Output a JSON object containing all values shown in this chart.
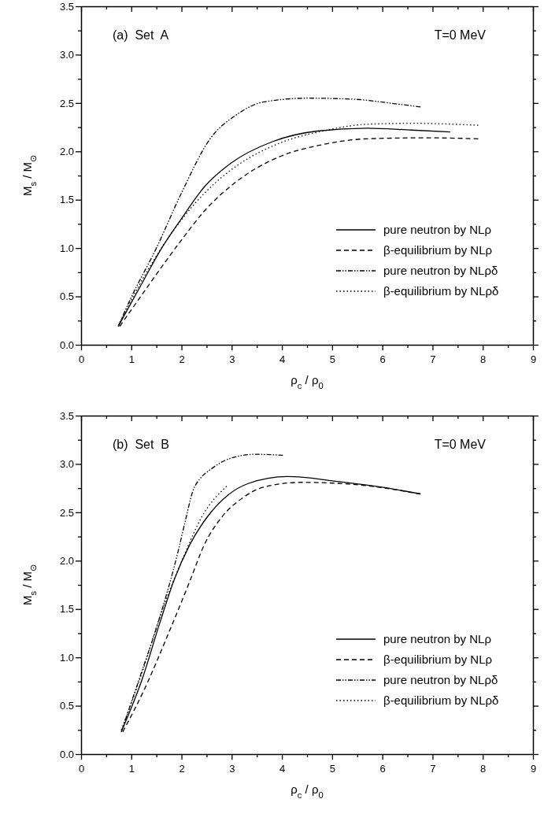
{
  "chart_data": [
    {
      "type": "line",
      "xlabel": "ρ$_{c}$ / ρ$_{0}$",
      "ylabel": "M$_{s}$ / M$_{⊙}$",
      "annotations": [
        "(a)  Set  A",
        "T=0 MeV"
      ],
      "xlim": [
        0,
        9
      ],
      "ylim": [
        0,
        3.5
      ],
      "xticks": [
        0,
        {
          "value": 0.5,
          "label": null
        },
        1,
        {
          "value": 1.5,
          "label": null
        },
        2,
        {
          "value": 2.5,
          "label": null
        },
        3,
        {
          "value": 3.5,
          "label": null
        },
        4,
        {
          "value": 4.5,
          "label": null
        },
        5,
        {
          "value": 5.5,
          "label": null
        },
        6,
        {
          "value": 6.5,
          "label": null
        },
        7,
        {
          "value": 7.5,
          "label": null
        },
        8,
        {
          "value": 8.5,
          "label": null
        },
        9
      ],
      "yticks": [
        {
          "value": 0,
          "label": "0.0"
        },
        {
          "value": 0.25,
          "label": null
        },
        {
          "value": 0.5,
          "label": "0.5"
        },
        {
          "value": 0.75,
          "label": null
        },
        {
          "value": 1,
          "label": "1.0"
        },
        {
          "value": 1.25,
          "label": null
        },
        {
          "value": 1.5,
          "label": "1.5"
        },
        {
          "value": 1.75,
          "label": null
        },
        {
          "value": 2,
          "label": "2.0"
        },
        {
          "value": 2.25,
          "label": null
        },
        {
          "value": 2.5,
          "label": "2.5"
        },
        {
          "value": 2.75,
          "label": null
        },
        {
          "value": 3,
          "label": "3.0"
        },
        {
          "value": 3.25,
          "label": null
        },
        {
          "value": 3.5,
          "label": "3.5"
        }
      ],
      "grid": false,
      "legend": "bottom right",
      "marker": "none",
      "series": [
        {
          "name": "pure neutron by NLρ",
          "color": "#000000",
          "line_style": "solid",
          "x": [
            0.74,
            1.27,
            1.57,
            1.98,
            2.45,
            2.99,
            3.81,
            4.7,
            5.7,
            6.58,
            7.35
          ],
          "values": [
            0.19,
            0.69,
            0.97,
            1.29,
            1.63,
            1.88,
            2.1,
            2.21,
            2.24,
            2.22,
            2.2
          ]
        },
        {
          "name": "β-equilibrium by NLρ",
          "color": "#000000",
          "line_style": "dashed",
          "x": [
            0.77,
            1.27,
            1.98,
            2.45,
            3.1,
            3.93,
            4.81,
            5.7,
            6.88,
            7.91
          ],
          "values": [
            0.19,
            0.56,
            1.07,
            1.38,
            1.69,
            1.94,
            2.07,
            2.13,
            2.14,
            2.13
          ]
        },
        {
          "name": "pure neutron by NLρδ",
          "color": "#000000",
          "line_style": "dashdotdot",
          "x": [
            0.74,
            0.98,
            1.5,
            2,
            2.57,
            3.1,
            3.63,
            4.52,
            5.4,
            6.29,
            6.76
          ],
          "values": [
            0.19,
            0.47,
            1.0,
            1.57,
            2.13,
            2.38,
            2.51,
            2.55,
            2.54,
            2.49,
            2.46
          ]
        },
        {
          "name": "β-equilibrium by NLρδ",
          "color": "#000000",
          "line_style": "dotted",
          "x": [
            0.74,
            1.27,
            2.04,
            2.52,
            3.1,
            3.93,
            4.81,
            5.7,
            6.58,
            7.91
          ],
          "values": [
            0.2,
            0.72,
            1.32,
            1.6,
            1.85,
            2.08,
            2.21,
            2.28,
            2.29,
            2.27
          ]
        }
      ]
    },
    {
      "type": "line",
      "xlabel": "ρ$_{c}$ / ρ$_{0}$",
      "ylabel": "M$_{s}$ / M$_{⊙}$",
      "annotations": [
        "(b)  Set  B",
        "T=0 MeV"
      ],
      "xlim": [
        0,
        9
      ],
      "ylim": [
        0,
        3.5
      ],
      "xticks": [
        0,
        {
          "value": 0.5,
          "label": null
        },
        1,
        {
          "value": 1.5,
          "label": null
        },
        2,
        {
          "value": 2.5,
          "label": null
        },
        3,
        {
          "value": 3.5,
          "label": null
        },
        4,
        {
          "value": 4.5,
          "label": null
        },
        5,
        {
          "value": 5.5,
          "label": null
        },
        6,
        {
          "value": 6.5,
          "label": null
        },
        7,
        {
          "value": 7.5,
          "label": null
        },
        8,
        {
          "value": 8.5,
          "label": null
        },
        9
      ],
      "yticks": [
        {
          "value": 0,
          "label": "0.0"
        },
        {
          "value": 0.25,
          "label": null
        },
        {
          "value": 0.5,
          "label": "0.5"
        },
        {
          "value": 0.75,
          "label": null
        },
        {
          "value": 1,
          "label": "1.0"
        },
        {
          "value": 1.25,
          "label": null
        },
        {
          "value": 1.5,
          "label": "1.5"
        },
        {
          "value": 1.75,
          "label": null
        },
        {
          "value": 2,
          "label": "2.0"
        },
        {
          "value": 2.25,
          "label": null
        },
        {
          "value": 2.5,
          "label": "2.5"
        },
        {
          "value": 2.75,
          "label": null
        },
        {
          "value": 3,
          "label": "3.0"
        },
        {
          "value": 3.25,
          "label": null
        },
        {
          "value": 3.5,
          "label": "3.5"
        }
      ],
      "grid": false,
      "legend": "bottom right",
      "marker": "none",
      "series": [
        {
          "name": "pure neutron by NLρ",
          "color": "#000000",
          "line_style": "solid",
          "x": [
            0.8,
            1.22,
            1.57,
            1.86,
            2.16,
            2.51,
            2.93,
            3.34,
            4.11,
            5.11,
            5.99,
            6.76
          ],
          "values": [
            0.23,
            0.78,
            1.36,
            1.81,
            2.16,
            2.45,
            2.68,
            2.8,
            2.87,
            2.82,
            2.76,
            2.69
          ]
        },
        {
          "name": "β-equilibrium by NLρ",
          "color": "#000000",
          "line_style": "dashed",
          "x": [
            0.83,
            1.27,
            1.75,
            2.16,
            2.45,
            2.8,
            3.22,
            3.63,
            4.4,
            5.4,
            6.76
          ],
          "values": [
            0.23,
            0.68,
            1.26,
            1.78,
            2.16,
            2.45,
            2.65,
            2.76,
            2.81,
            2.79,
            2.69
          ]
        },
        {
          "name": "pure neutron by NLρδ",
          "color": "#000000",
          "line_style": "dashdotdot",
          "x": [
            0.8,
            1.16,
            1.57,
            1.92,
            2.08,
            2.22,
            2.39,
            2.57,
            2.93,
            3.46,
            4.02
          ],
          "values": [
            0.23,
            0.78,
            1.42,
            2.07,
            2.42,
            2.71,
            2.86,
            2.94,
            3.05,
            3.1,
            3.09
          ]
        },
        {
          "name": "β-equilibrium by NLρδ",
          "color": "#000000",
          "line_style": "dotted",
          "x": [
            0.8,
            1.22,
            1.57,
            2.04,
            2.4,
            2.9
          ],
          "values": [
            0.25,
            0.85,
            1.42,
            2.04,
            2.45,
            2.77
          ]
        }
      ]
    }
  ]
}
